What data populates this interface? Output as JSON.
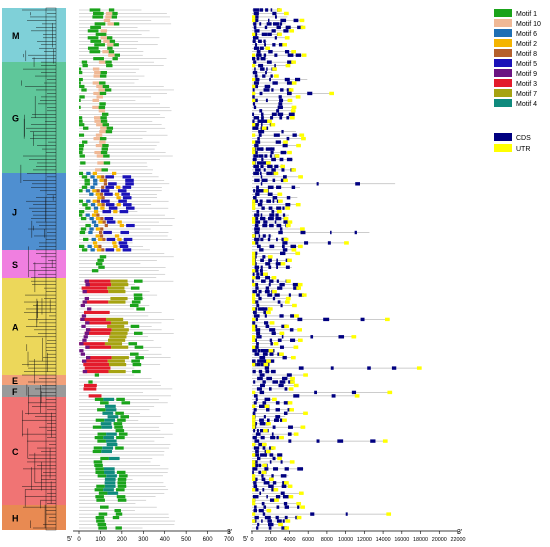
{
  "groups": [
    {
      "label": "M",
      "color": "#7fd0d8"
    },
    {
      "label": "G",
      "color": "#5fc79a"
    },
    {
      "label": "J",
      "color": "#4f8fd0"
    },
    {
      "label": "S",
      "color": "#f07fe0"
    },
    {
      "label": "A",
      "color": "#ecd75a"
    },
    {
      "label": "E",
      "color": "#f2a07a"
    },
    {
      "label": "F",
      "color": "#9a9a9a"
    },
    {
      "label": "C",
      "color": "#f07474"
    },
    {
      "label": "H",
      "color": "#e88a52"
    }
  ],
  "motif_axis": {
    "start_label": "5'",
    "end_label": "3'",
    "ticks": [
      "0",
      "100",
      "200",
      "300",
      "400",
      "500",
      "600",
      "700"
    ]
  },
  "gene_axis": {
    "start_label": "5'",
    "end_label": "3'",
    "ticks": [
      "0",
      "2000",
      "4000",
      "6000",
      "8000",
      "10000",
      "12000",
      "14000",
      "16000",
      "18000",
      "20000",
      "22000"
    ]
  },
  "motif_legend": [
    {
      "label": "Motif 1",
      "color": "#1aa31a"
    },
    {
      "label": "Motif 10",
      "color": "#f0b996"
    },
    {
      "label": "Motif 6",
      "color": "#1f6fb4"
    },
    {
      "label": "Motif 2",
      "color": "#f4b400"
    },
    {
      "label": "Motif 8",
      "color": "#b5602b"
    },
    {
      "label": "Motif 5",
      "color": "#1a12b8"
    },
    {
      "label": "Motif 9",
      "color": "#6b1482"
    },
    {
      "label": "Motif 3",
      "color": "#e31b2b"
    },
    {
      "label": "Motif 7",
      "color": "#a6a312"
    },
    {
      "label": "Motif 4",
      "color": "#0f8a7d"
    }
  ],
  "structure_legend": [
    {
      "label": "CDS",
      "color": "#000080"
    },
    {
      "label": "UTR",
      "color": "#ffff00"
    }
  ]
}
